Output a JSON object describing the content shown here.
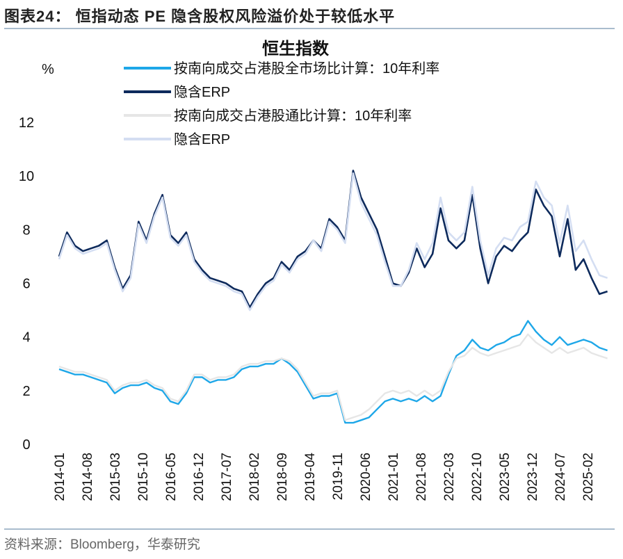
{
  "header": {
    "title": "图表24：  恒指动态 PE 隐含股权风险溢价处于较低水平"
  },
  "footer": {
    "source": "资料来源：Bloomberg，华泰研究"
  },
  "chart_data": {
    "type": "line",
    "title": "恒生指数",
    "ylabel": "%",
    "ylim": [
      0,
      12
    ],
    "yticks": [
      "0",
      "2",
      "4",
      "6",
      "8",
      "10",
      "12"
    ],
    "grid": false,
    "legend_placement": "top",
    "x_start": "2014-01",
    "x_step_months": 2,
    "xticks": [
      "2014-01",
      "2014-08",
      "2015-03",
      "2015-10",
      "2016-05",
      "2016-12",
      "2017-07",
      "2018-02",
      "2018-09",
      "2019-04",
      "2019-11",
      "2020-06",
      "2021-01",
      "2021-08",
      "2022-03",
      "2022-10",
      "2023-05",
      "2023-12",
      "2024-07",
      "2025-02"
    ],
    "series": [
      {
        "name": "按南向成交占港股全市场比计算：10年利率",
        "color": "#1ea7e8",
        "values": [
          2.8,
          2.7,
          2.6,
          2.6,
          2.5,
          2.4,
          2.3,
          1.9,
          2.1,
          2.2,
          2.2,
          2.3,
          2.1,
          2.0,
          1.6,
          1.5,
          1.9,
          2.5,
          2.5,
          2.3,
          2.4,
          2.4,
          2.5,
          2.8,
          2.9,
          2.9,
          3.0,
          3.0,
          3.2,
          3.0,
          2.7,
          2.2,
          1.7,
          1.8,
          1.8,
          1.9,
          0.8,
          0.8,
          0.9,
          1.0,
          1.3,
          1.6,
          1.7,
          1.6,
          1.7,
          1.6,
          1.8,
          1.6,
          1.8,
          2.6,
          3.3,
          3.5,
          3.9,
          3.6,
          3.5,
          3.7,
          3.8,
          4.0,
          4.1,
          4.6,
          4.2,
          3.9,
          3.7,
          4.0,
          3.7,
          3.8,
          3.9,
          3.8,
          3.6,
          3.5
        ]
      },
      {
        "name": "隐含ERP",
        "color": "#0d2a5c",
        "values": [
          7.0,
          7.9,
          7.4,
          7.2,
          7.3,
          7.4,
          7.6,
          6.6,
          5.8,
          6.3,
          8.3,
          7.6,
          8.6,
          9.3,
          7.8,
          7.5,
          7.9,
          6.9,
          6.5,
          6.2,
          6.1,
          6.0,
          5.8,
          5.7,
          5.1,
          5.6,
          6.0,
          6.2,
          6.8,
          6.5,
          7.0,
          7.2,
          7.6,
          7.3,
          8.4,
          8.1,
          7.6,
          10.2,
          9.2,
          8.6,
          8.0,
          7.0,
          6.0,
          5.9,
          6.4,
          7.3,
          6.6,
          7.1,
          8.8,
          7.6,
          7.3,
          7.6,
          9.3,
          7.3,
          6.0,
          7.0,
          7.4,
          7.2,
          7.6,
          7.9,
          9.5,
          8.9,
          8.5,
          7.0,
          8.4,
          6.5,
          6.9,
          6.2,
          5.6,
          5.7
        ]
      },
      {
        "name": "按南向成交占港股通比计算：10年利率",
        "color": "#e6e6e6",
        "values": [
          2.9,
          2.8,
          2.7,
          2.7,
          2.6,
          2.5,
          2.4,
          2.0,
          2.2,
          2.3,
          2.3,
          2.4,
          2.2,
          2.1,
          1.7,
          1.6,
          2.0,
          2.6,
          2.6,
          2.4,
          2.5,
          2.5,
          2.6,
          2.9,
          3.0,
          3.0,
          3.1,
          3.1,
          3.2,
          3.1,
          2.8,
          2.3,
          1.8,
          1.9,
          1.9,
          2.0,
          0.9,
          1.0,
          1.1,
          1.3,
          1.6,
          1.9,
          2.0,
          1.9,
          2.0,
          1.8,
          2.0,
          1.8,
          2.0,
          2.7,
          3.2,
          3.3,
          3.6,
          3.4,
          3.3,
          3.4,
          3.5,
          3.6,
          3.7,
          4.1,
          3.8,
          3.6,
          3.4,
          3.6,
          3.4,
          3.5,
          3.6,
          3.4,
          3.3,
          3.2
        ]
      },
      {
        "name": "隐含ERP",
        "color": "#d4def2",
        "values": [
          6.9,
          7.8,
          7.3,
          7.1,
          7.2,
          7.3,
          7.5,
          6.5,
          5.7,
          6.2,
          8.2,
          7.5,
          8.5,
          9.2,
          7.7,
          7.4,
          7.8,
          6.8,
          6.4,
          6.1,
          6.0,
          5.9,
          5.7,
          5.6,
          5.0,
          5.5,
          5.9,
          6.1,
          6.7,
          6.4,
          6.9,
          7.1,
          7.6,
          7.2,
          8.3,
          8.0,
          7.5,
          10.1,
          9.0,
          8.4,
          7.8,
          6.8,
          5.9,
          5.9,
          6.5,
          7.5,
          6.9,
          7.5,
          9.2,
          7.9,
          7.6,
          7.9,
          9.6,
          7.6,
          6.3,
          7.3,
          7.7,
          7.6,
          8.1,
          8.3,
          9.8,
          9.2,
          8.9,
          7.5,
          8.9,
          7.2,
          7.6,
          6.9,
          6.3,
          6.2
        ]
      }
    ]
  }
}
